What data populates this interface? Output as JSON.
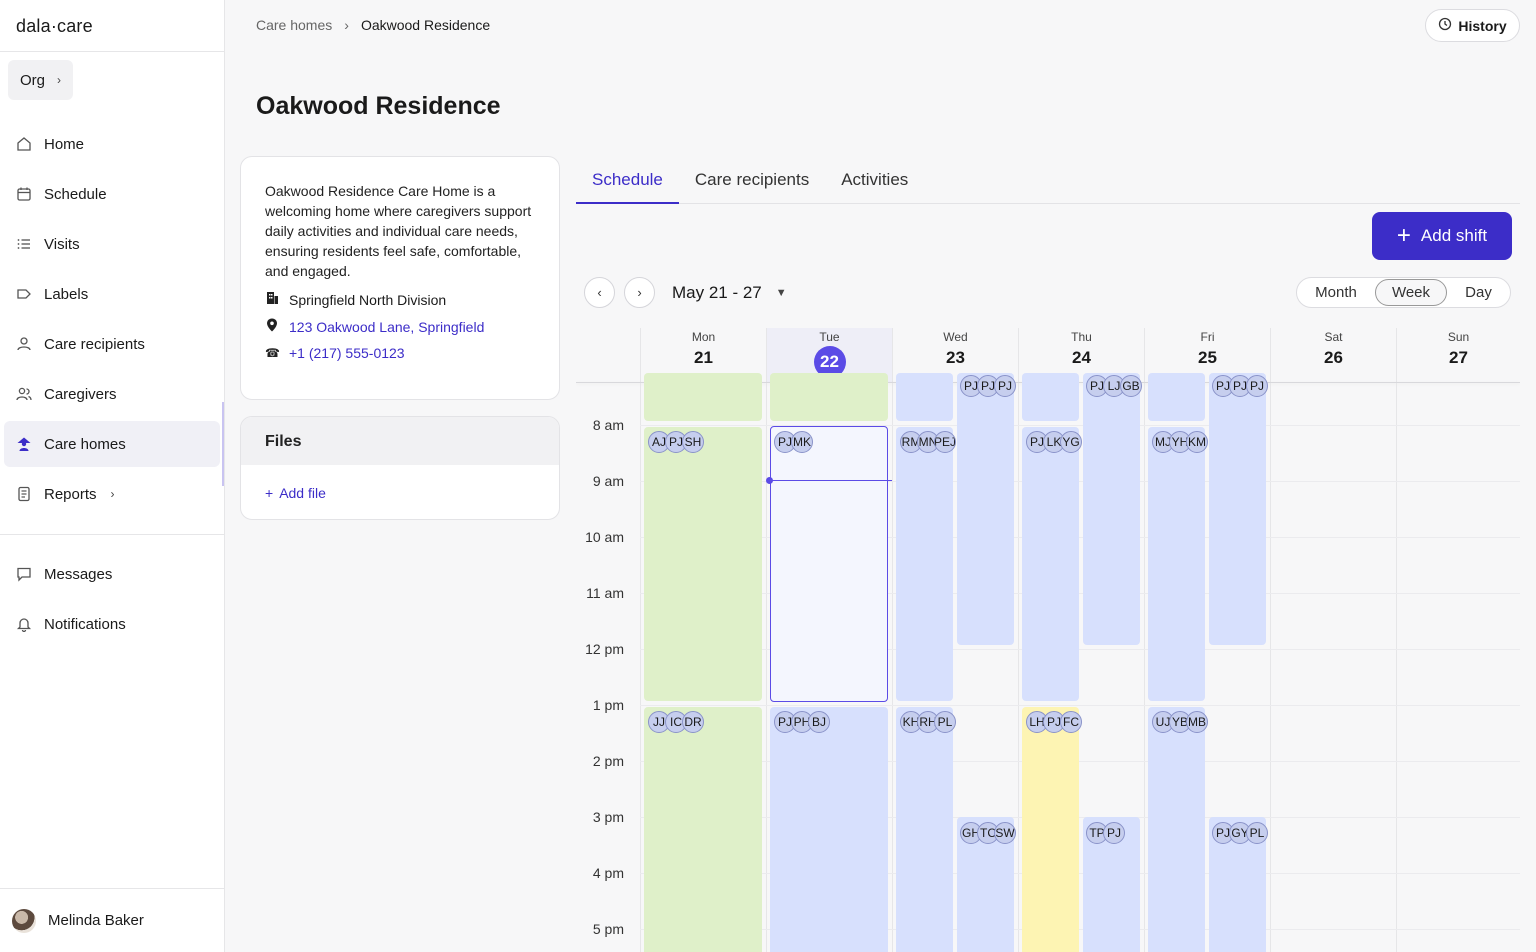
{
  "sidebar": {
    "logo": "dala·care",
    "org": "Org",
    "items": [
      {
        "label": "Home"
      },
      {
        "label": "Schedule"
      },
      {
        "label": "Visits"
      },
      {
        "label": "Labels"
      },
      {
        "label": "Care recipients"
      },
      {
        "label": "Caregivers"
      },
      {
        "label": "Care homes"
      },
      {
        "label": "Reports"
      },
      {
        "label": "Messages"
      },
      {
        "label": "Notifications"
      }
    ],
    "user": "Melinda Baker"
  },
  "header": {
    "breadcrumb_root": "Care homes",
    "breadcrumb_current": "Oakwood Residence",
    "history": "History"
  },
  "page": {
    "title": "Oakwood Residence",
    "description": "Oakwood Residence Care Home is a welcoming home where caregivers support daily activities and individual care needs, ensuring residents feel safe, comfortable, and engaged.",
    "division": "Springfield North Division",
    "address": "123 Oakwood Lane, Springfield",
    "phone": "+1 (217) 555-0123",
    "files_title": "Files",
    "add_file": "Add file"
  },
  "tabs": [
    "Schedule",
    "Care recipients",
    "Activities"
  ],
  "toolbar": {
    "add_shift": "Add shift",
    "range": "May 21 - 27",
    "views": [
      "Month",
      "Week",
      "Day"
    ],
    "selected_view": "Week"
  },
  "calendar": {
    "days": [
      {
        "name": "Mon",
        "date": "21"
      },
      {
        "name": "Tue",
        "date": "22"
      },
      {
        "name": "Wed",
        "date": "23"
      },
      {
        "name": "Thu",
        "date": "24"
      },
      {
        "name": "Fri",
        "date": "25"
      },
      {
        "name": "Sat",
        "date": "26"
      },
      {
        "name": "Sun",
        "date": "27"
      }
    ],
    "today": "22",
    "hours": [
      "8 am",
      "9 am",
      "10 am",
      "11 am",
      "12 pm",
      "1 pm",
      "2 pm",
      "3 pm",
      "4 pm",
      "5 pm"
    ],
    "shifts": {
      "mon_am": [
        "AJ",
        "PJ",
        "SH"
      ],
      "mon_pm": [
        "JJ",
        "IC",
        "DR"
      ],
      "tue_am": [
        "PJ",
        "MK"
      ],
      "tue_pm": [
        "PJ",
        "PH",
        "BJ"
      ],
      "wed_a_am": [
        "RM",
        "MN",
        "PEJ"
      ],
      "wed_b_early": [
        "PJ",
        "PJ",
        "PJ"
      ],
      "wed_a_pm": [
        "KH",
        "RH",
        "PL"
      ],
      "wed_b_pm": [
        "GH",
        "TC",
        "SW"
      ],
      "thu_a_am": [
        "PJ",
        "LK",
        "YG"
      ],
      "thu_b_early": [
        "PJ",
        "LJ",
        "GB"
      ],
      "thu_a_pm": [
        "LH",
        "PJ",
        "FC"
      ],
      "thu_b_pm": [
        "TP",
        "PJ"
      ],
      "fri_a_am": [
        "MJ",
        "YH",
        "KM"
      ],
      "fri_b_early": [
        "PJ",
        "PJ",
        "PJ"
      ],
      "fri_a_pm": [
        "UJ",
        "YB",
        "MB"
      ],
      "fri_b_pm": [
        "PJ",
        "GY",
        "PL"
      ]
    }
  }
}
